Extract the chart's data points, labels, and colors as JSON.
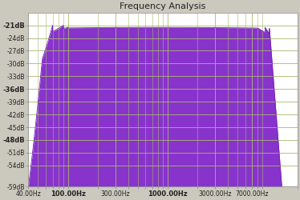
{
  "title": "Frequency Analysis",
  "bg_color": "#cbc8be",
  "plot_bg_color": "#ffffff",
  "fill_color": "#8833cc",
  "line_color": "#7722bb",
  "grid_color": "#aab870",
  "xmin": 40,
  "xmax": 20000,
  "ymin": -59,
  "ymax": -18,
  "yticks": [
    -21,
    -24,
    -27,
    -30,
    -33,
    -36,
    -39,
    -42,
    -45,
    -48,
    -51,
    -54,
    -59
  ],
  "xticks": [
    40,
    100,
    300,
    1000,
    3000,
    7000
  ],
  "xtick_labels": [
    "40.00Hz",
    "100.00Hz",
    "300.00Hz",
    "1000.00Hz",
    "3000.00Hz",
    "7000.00Hz"
  ],
  "ytick_labels": [
    "-21dB",
    "-24dB",
    "-27dB",
    "-30dB",
    "-33dB",
    "-36dB",
    "-39dB",
    "-42dB",
    "-45dB",
    "-48dB",
    "-51dB",
    "-54dB",
    "-59dB"
  ],
  "bold_xticks": [
    100,
    1000
  ],
  "bold_yticks": [
    -21,
    -36,
    -48
  ],
  "title_fontsize": 8,
  "tick_fontsize": 5.5
}
